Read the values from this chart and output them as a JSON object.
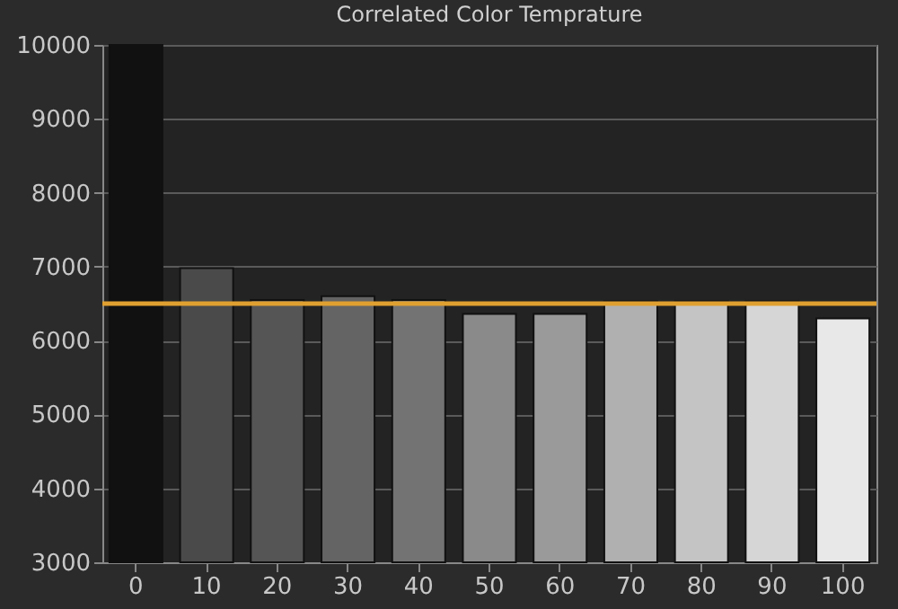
{
  "chart_data": {
    "type": "bar",
    "title": "Correlated Color Temprature",
    "categories": [
      "0",
      "10",
      "20",
      "30",
      "40",
      "50",
      "60",
      "70",
      "80",
      "90",
      "100"
    ],
    "values": [
      10000,
      6980,
      6550,
      6600,
      6550,
      6360,
      6360,
      6530,
      6530,
      6530,
      6300
    ],
    "colors": [
      "#111111",
      "#4a4a4a",
      "#555555",
      "#646464",
      "#737373",
      "#8a8a8a",
      "#9a9a9a",
      "#b0b0b0",
      "#c4c4c4",
      "#d6d6d6",
      "#e8e8e8"
    ],
    "ylim": [
      3000,
      10000
    ],
    "yticks": [
      3000,
      4000,
      5000,
      6000,
      7000,
      8000,
      9000,
      10000
    ],
    "grid": "y",
    "ref_lines": [
      {
        "axis": "y",
        "value": 6500,
        "color": "#e0a030"
      }
    ]
  }
}
